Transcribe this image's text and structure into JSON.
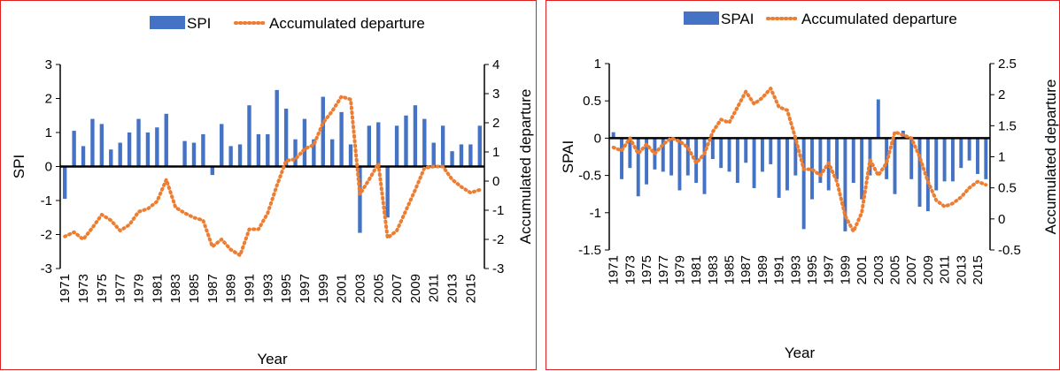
{
  "chart_data": [
    {
      "type": "bar",
      "x": [
        1971,
        1972,
        1973,
        1974,
        1975,
        1976,
        1977,
        1978,
        1979,
        1980,
        1981,
        1982,
        1983,
        1984,
        1985,
        1986,
        1987,
        1988,
        1989,
        1990,
        1991,
        1992,
        1993,
        1994,
        1995,
        1996,
        1997,
        1998,
        1999,
        2000,
        2001,
        2002,
        2003,
        2004,
        2005,
        2006,
        2007,
        2008,
        2009,
        2010,
        2011,
        2012,
        2013,
        2014,
        2015,
        2016
      ],
      "x_tick_labels": [
        "1971",
        "1973",
        "1975",
        "1977",
        "1979",
        "1981",
        "1983",
        "1985",
        "1987",
        "1989",
        "1991",
        "1993",
        "1995",
        "1997",
        "1999",
        "2001",
        "2003",
        "2005",
        "2007",
        "2009",
        "2011",
        "2013",
        "2015"
      ],
      "xlabel": "Year",
      "ylabel": "SPI",
      "y2label": "Accumulated departure",
      "ylim": [
        -3,
        3
      ],
      "y_ticks": [
        "-3",
        "-2",
        "-1",
        "0",
        "1",
        "2",
        "3"
      ],
      "y2lim": [
        -3,
        4
      ],
      "y2_ticks": [
        "-3",
        "-2",
        "-1",
        "0",
        "1",
        "2",
        "3",
        "4"
      ],
      "legend_position": "top",
      "series": [
        {
          "name": "SPI",
          "kind": "bar",
          "axis": "left",
          "color": "#4472c4",
          "values": [
            -0.95,
            1.05,
            0.6,
            1.4,
            1.25,
            0.5,
            0.7,
            1.0,
            1.4,
            1.0,
            1.15,
            1.55,
            0,
            0.75,
            0.7,
            0.95,
            -0.25,
            1.25,
            0.6,
            0.65,
            1.8,
            0.95,
            0.95,
            2.25,
            1.7,
            0.8,
            1.4,
            0.8,
            2.05,
            0.8,
            1.6,
            0.65,
            -1.95,
            1.2,
            1.3,
            -1.5,
            1.2,
            1.5,
            1.8,
            1.4,
            0.7,
            1.2,
            0.45,
            0.65,
            0.65,
            1.2
          ]
        },
        {
          "name": "Accumulated departure",
          "kind": "line",
          "axis": "right",
          "color": "#ed7d31",
          "values": [
            -1.9,
            -1.75,
            -2.0,
            -1.6,
            -1.15,
            -1.35,
            -1.7,
            -1.5,
            -1.05,
            -0.95,
            -0.7,
            0.05,
            -0.9,
            -1.1,
            -1.25,
            -1.35,
            -2.25,
            -2.0,
            -2.35,
            -2.55,
            -1.65,
            -1.65,
            -1.1,
            -0.15,
            0.7,
            0.75,
            1.1,
            1.25,
            2.0,
            2.4,
            2.9,
            2.8,
            -0.45,
            0.05,
            0.6,
            -1.95,
            -1.7,
            -1.0,
            -0.3,
            0.45,
            0.5,
            0.5,
            0.05,
            -0.2,
            -0.4,
            -0.3
          ]
        }
      ]
    },
    {
      "type": "bar",
      "x": [
        1971,
        1972,
        1973,
        1974,
        1975,
        1976,
        1977,
        1978,
        1979,
        1980,
        1981,
        1982,
        1983,
        1984,
        1985,
        1986,
        1987,
        1988,
        1989,
        1990,
        1991,
        1992,
        1993,
        1994,
        1995,
        1996,
        1997,
        1998,
        1999,
        2000,
        2001,
        2002,
        2003,
        2004,
        2005,
        2006,
        2007,
        2008,
        2009,
        2010,
        2011,
        2012,
        2013,
        2014,
        2015,
        2016
      ],
      "x_tick_labels": [
        "1971",
        "1973",
        "1975",
        "1977",
        "1979",
        "1981",
        "1983",
        "1985",
        "1987",
        "1989",
        "1991",
        "1993",
        "1995",
        "1997",
        "1999",
        "2001",
        "2003",
        "2005",
        "2007",
        "2009",
        "2011",
        "2013",
        "2015"
      ],
      "xlabel": "Year",
      "ylabel": "SPAI",
      "y2label": "Accumulated departure",
      "ylim": [
        -1.5,
        1
      ],
      "y_ticks": [
        "-1.5",
        "-1",
        "-0.5",
        "0",
        "0.5",
        "1"
      ],
      "y2lim": [
        -0.5,
        2.5
      ],
      "y2_ticks": [
        "-0.5",
        "0",
        "0.5",
        "1",
        "1.5",
        "2",
        "2.5"
      ],
      "legend_position": "top",
      "series": [
        {
          "name": "SPAI",
          "kind": "bar",
          "axis": "left",
          "color": "#4472c4",
          "values": [
            0.08,
            -0.55,
            -0.4,
            -0.78,
            -0.62,
            -0.42,
            -0.45,
            -0.5,
            -0.7,
            -0.5,
            -0.6,
            -0.75,
            -0.28,
            -0.4,
            -0.45,
            -0.6,
            -0.33,
            -0.67,
            -0.45,
            -0.35,
            -0.8,
            -0.7,
            -0.5,
            -1.22,
            -0.82,
            -0.6,
            -0.7,
            -0.55,
            -1.25,
            -0.6,
            -0.82,
            -0.5,
            0.52,
            -0.55,
            -0.75,
            0.1,
            -0.55,
            -0.92,
            -0.98,
            -0.7,
            -0.58,
            -0.58,
            -0.4,
            -0.3,
            -0.48,
            -0.55
          ]
        },
        {
          "name": "Accumulated departure",
          "kind": "line",
          "axis": "right",
          "color": "#ed7d31",
          "values": [
            1.15,
            1.1,
            1.3,
            1.05,
            1.2,
            1.05,
            1.2,
            1.3,
            1.25,
            1.15,
            0.9,
            1.05,
            1.4,
            1.6,
            1.55,
            1.8,
            2.05,
            1.85,
            1.95,
            2.1,
            1.8,
            1.75,
            1.3,
            0.8,
            0.8,
            0.7,
            0.9,
            0.6,
            0.05,
            -0.2,
            0.1,
            0.95,
            0.7,
            0.9,
            1.4,
            1.35,
            1.3,
            1.0,
            0.6,
            0.3,
            0.2,
            0.25,
            0.35,
            0.5,
            0.6,
            0.55
          ]
        }
      ]
    }
  ]
}
